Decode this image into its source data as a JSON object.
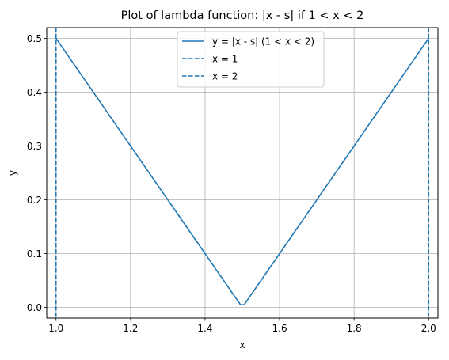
{
  "chart_data": {
    "type": "line",
    "title": "Plot of lambda function: |x - s| if 1 < x < 2",
    "xlabel": "x",
    "ylabel": "y",
    "xlim": [
      0.975,
      2.025
    ],
    "ylim": [
      -0.0198,
      0.5198
    ],
    "xticks": [
      1.0,
      1.2,
      1.4,
      1.6,
      1.8,
      2.0
    ],
    "xtick_labels": [
      "1.0",
      "1.2",
      "1.4",
      "1.6",
      "1.8",
      "2.0"
    ],
    "yticks": [
      0.0,
      0.1,
      0.2,
      0.3,
      0.4,
      0.5
    ],
    "ytick_labels": [
      "0.0",
      "0.1",
      "0.2",
      "0.3",
      "0.4",
      "0.5"
    ],
    "grid": true,
    "legend_position": "upper center",
    "series": [
      {
        "name": "y = |x - s| (1 < x < 2)",
        "style": "solid",
        "color": "#1f77b4",
        "x": [
          1.0,
          1.495,
          1.505,
          2.0
        ],
        "y": [
          0.5,
          0.005,
          0.005,
          0.5
        ]
      }
    ],
    "vlines": [
      {
        "name": "x = 1",
        "x": 1.0,
        "style": "dashed",
        "color": "#1f77b4"
      },
      {
        "name": "x = 2",
        "x": 2.0,
        "style": "dashed",
        "color": "#1f77b4"
      }
    ]
  }
}
